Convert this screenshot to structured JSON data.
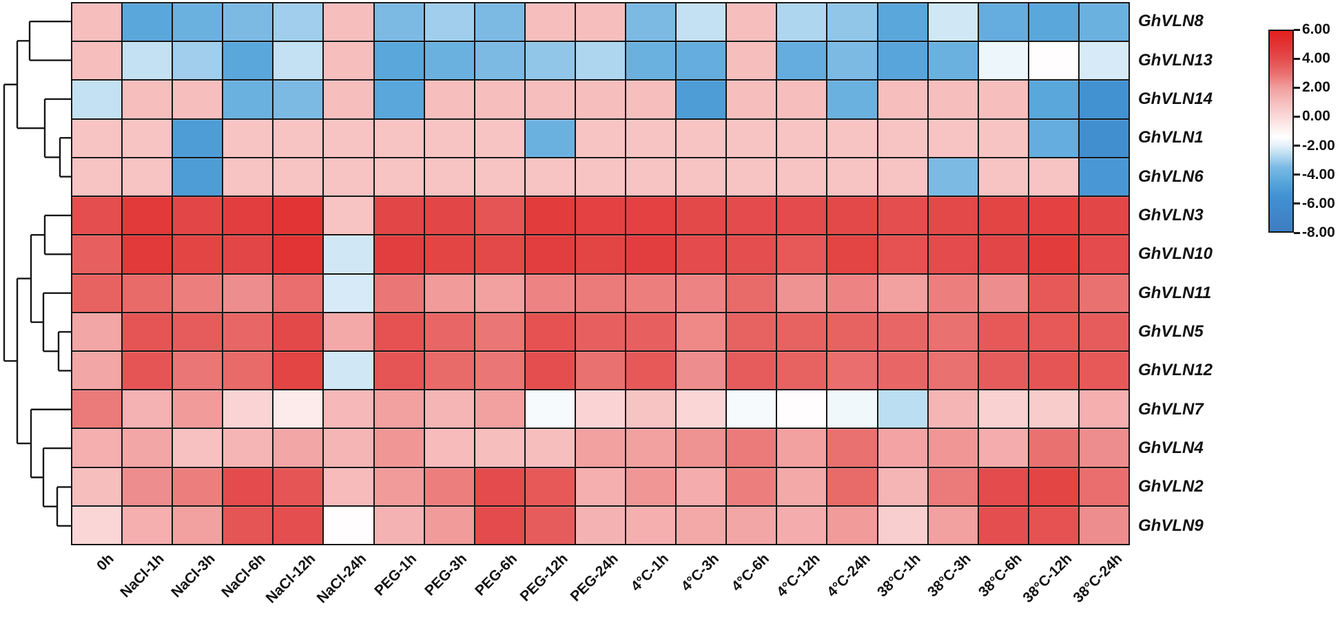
{
  "chart_data": {
    "type": "heatmap",
    "title": "",
    "rows": [
      "GhVLN8",
      "GhVLN13",
      "GhVLN14",
      "GhVLN1",
      "GhVLN6",
      "GhVLN3",
      "GhVLN10",
      "GhVLN11",
      "GhVLN5",
      "GhVLN12",
      "GhVLN7",
      "GhVLN4",
      "GhVLN2",
      "GhVLN9"
    ],
    "columns": [
      "0h",
      "NaCl-1h",
      "NaCl-3h",
      "NaCl-6h",
      "NaCl-12h",
      "NaCl-24h",
      "PEG-1h",
      "PEG-3h",
      "PEG-6h",
      "PEG-12h",
      "PEG-24h",
      "4°C-1h",
      "4°C-3h",
      "4°C-6h",
      "4°C-12h",
      "4°C-24h",
      "38°C-1h",
      "38°C-3h",
      "38°C-6h",
      "38°C-12h",
      "38°C-24h"
    ],
    "values": [
      [
        1.0,
        -4.5,
        -4.0,
        -3.5,
        -3.0,
        1.0,
        -3.5,
        -3.0,
        -3.5,
        1.0,
        1.0,
        -3.5,
        -2.5,
        1.0,
        -2.8,
        -3.2,
        -4.5,
        -2.3,
        -4.2,
        -4.5,
        -4.0
      ],
      [
        1.0,
        -2.5,
        -3.0,
        -4.5,
        -2.5,
        1.0,
        -4.5,
        -4.0,
        -3.5,
        -3.2,
        -2.8,
        -4.0,
        -4.2,
        1.0,
        -4.2,
        -3.5,
        -4.6,
        -4.0,
        -1.8,
        -1.3,
        -2.2
      ],
      [
        -2.5,
        1.0,
        1.0,
        -4.0,
        -3.5,
        1.0,
        -4.5,
        1.0,
        1.0,
        1.0,
        1.0,
        1.0,
        -5.0,
        1.0,
        1.0,
        -4.0,
        1.0,
        1.0,
        1.0,
        -4.5,
        -5.5
      ],
      [
        0.8,
        0.8,
        -5.0,
        0.8,
        0.8,
        0.8,
        0.8,
        0.8,
        0.8,
        -4.0,
        0.8,
        0.8,
        0.8,
        0.8,
        0.8,
        0.8,
        0.8,
        0.8,
        0.8,
        -4.2,
        -5.8
      ],
      [
        0.8,
        0.8,
        -5.0,
        0.8,
        0.8,
        0.8,
        0.8,
        0.8,
        0.8,
        0.8,
        0.8,
        0.8,
        0.8,
        0.8,
        0.8,
        0.8,
        0.8,
        -3.5,
        0.8,
        0.8,
        -5.2
      ],
      [
        4.0,
        4.8,
        4.3,
        4.6,
        5.0,
        0.8,
        4.3,
        4.3,
        3.8,
        4.7,
        4.5,
        4.5,
        4.2,
        4.1,
        4.1,
        4.2,
        4.0,
        4.2,
        4.4,
        4.5,
        4.3
      ],
      [
        3.5,
        4.8,
        4.4,
        4.3,
        5.0,
        -2.3,
        4.6,
        4.4,
        4.2,
        4.6,
        4.4,
        4.6,
        4.1,
        4.0,
        3.7,
        4.4,
        3.9,
        4.1,
        4.3,
        4.7,
        4.1
      ],
      [
        3.4,
        3.2,
        2.7,
        2.4,
        3.1,
        -2.2,
        2.9,
        2.1,
        2.0,
        2.6,
        2.8,
        2.7,
        2.6,
        3.2,
        2.3,
        2.6,
        2.0,
        2.7,
        2.4,
        3.7,
        3.0
      ],
      [
        1.8,
        3.8,
        3.6,
        3.3,
        4.2,
        1.7,
        3.9,
        3.3,
        2.9,
        3.9,
        3.5,
        3.5,
        2.5,
        3.4,
        3.4,
        3.4,
        3.3,
        3.0,
        3.7,
        3.7,
        3.6
      ],
      [
        1.8,
        3.8,
        2.9,
        3.2,
        4.4,
        -2.3,
        3.8,
        3.2,
        2.9,
        4.0,
        3.0,
        3.7,
        2.4,
        3.6,
        3.4,
        3.1,
        3.3,
        3.0,
        3.6,
        3.8,
        3.7
      ],
      [
        2.8,
        1.4,
        2.1,
        0.2,
        -0.6,
        1.2,
        2.0,
        1.3,
        2.0,
        -1.6,
        0.2,
        0.8,
        0.1,
        -1.6,
        -1.3,
        -1.7,
        -2.6,
        1.3,
        0.3,
        0.5,
        1.5
      ],
      [
        1.5,
        1.8,
        0.9,
        1.3,
        1.8,
        1.3,
        2.2,
        1.1,
        1.0,
        1.0,
        2.0,
        2.0,
        2.3,
        2.8,
        2.0,
        3.0,
        1.9,
        2.2,
        1.6,
        3.0,
        2.4
      ],
      [
        1.0,
        2.4,
        2.7,
        4.1,
        3.8,
        1.1,
        2.1,
        2.7,
        4.1,
        3.7,
        1.5,
        2.2,
        1.6,
        2.7,
        1.7,
        3.2,
        1.3,
        2.8,
        4.1,
        4.4,
        3.1
      ],
      [
        0.1,
        1.5,
        2.0,
        3.8,
        4.0,
        -1.3,
        1.4,
        2.1,
        4.1,
        3.6,
        1.4,
        1.5,
        1.7,
        1.8,
        1.6,
        2.1,
        0.4,
        2.0,
        4.0,
        3.9,
        2.4
      ]
    ],
    "colorbar": {
      "min": -8,
      "max": 6,
      "tick_values": [
        6,
        4,
        2,
        0,
        -2,
        -4,
        -6,
        -8
      ],
      "tick_labels": [
        "6.00",
        "4.00",
        "2.00",
        "0.00",
        "-2.00",
        "-4.00",
        "-6.00",
        "-8.00"
      ]
    },
    "colormap_stops": [
      {
        "v": 6,
        "c": "#E2201F"
      },
      {
        "v": 5,
        "c": "#E23435"
      },
      {
        "v": 4,
        "c": "#E44E4E"
      },
      {
        "v": 3,
        "c": "#E97170"
      },
      {
        "v": 2,
        "c": "#F2A0A0"
      },
      {
        "v": 1,
        "c": "#F7BEBE"
      },
      {
        "v": 0,
        "c": "#FBD9D9"
      },
      {
        "v": -1,
        "c": "#FEF5F5"
      },
      {
        "v": -1.4,
        "c": "#FFFFFF"
      },
      {
        "v": -2,
        "c": "#E3F1F9"
      },
      {
        "v": -2.6,
        "c": "#BCDEF2"
      },
      {
        "v": -3.5,
        "c": "#7CBAE4"
      },
      {
        "v": -4.5,
        "c": "#5AA7DC"
      },
      {
        "v": -5.5,
        "c": "#4292D2"
      },
      {
        "v": -8,
        "c": "#3E7DC0"
      }
    ],
    "dendrogram": {
      "orientation": "left",
      "line_color": "#161616",
      "tree": {
        "x": 6,
        "children": [
          {
            "x": 25,
            "children": [
              {
                "x": 43,
                "children": [
                  {
                    "leaf": 0
                  },
                  {
                    "leaf": 1
                  }
                ]
              },
              {
                "x": 65,
                "children": [
                  {
                    "leaf": 2
                  },
                  {
                    "x": 87,
                    "children": [
                      {
                        "leaf": 3
                      },
                      {
                        "leaf": 4
                      }
                    ]
                  }
                ]
              }
            ]
          },
          {
            "x": 25,
            "children": [
              {
                "x": 45,
                "children": [
                  {
                    "x": 65,
                    "children": [
                      {
                        "leaf": 5
                      },
                      {
                        "leaf": 6
                      }
                    ]
                  },
                  {
                    "x": 63,
                    "children": [
                      {
                        "leaf": 7
                      },
                      {
                        "x": 85,
                        "children": [
                          {
                            "leaf": 8
                          },
                          {
                            "leaf": 9
                          }
                        ]
                      }
                    ]
                  }
                ]
              },
              {
                "x": 45,
                "children": [
                  {
                    "leaf": 10
                  },
                  {
                    "x": 63,
                    "children": [
                      {
                        "leaf": 11
                      },
                      {
                        "x": 83,
                        "children": [
                          {
                            "leaf": 12
                          },
                          {
                            "leaf": 13
                          }
                        ]
                      }
                    ]
                  }
                ]
              }
            ]
          }
        ]
      }
    },
    "layout_hints": {
      "legend_position": "top-right",
      "grid_lines": "black cell borders",
      "row_labels_style": "bold italic",
      "column_labels_rotation_deg": 45
    }
  }
}
